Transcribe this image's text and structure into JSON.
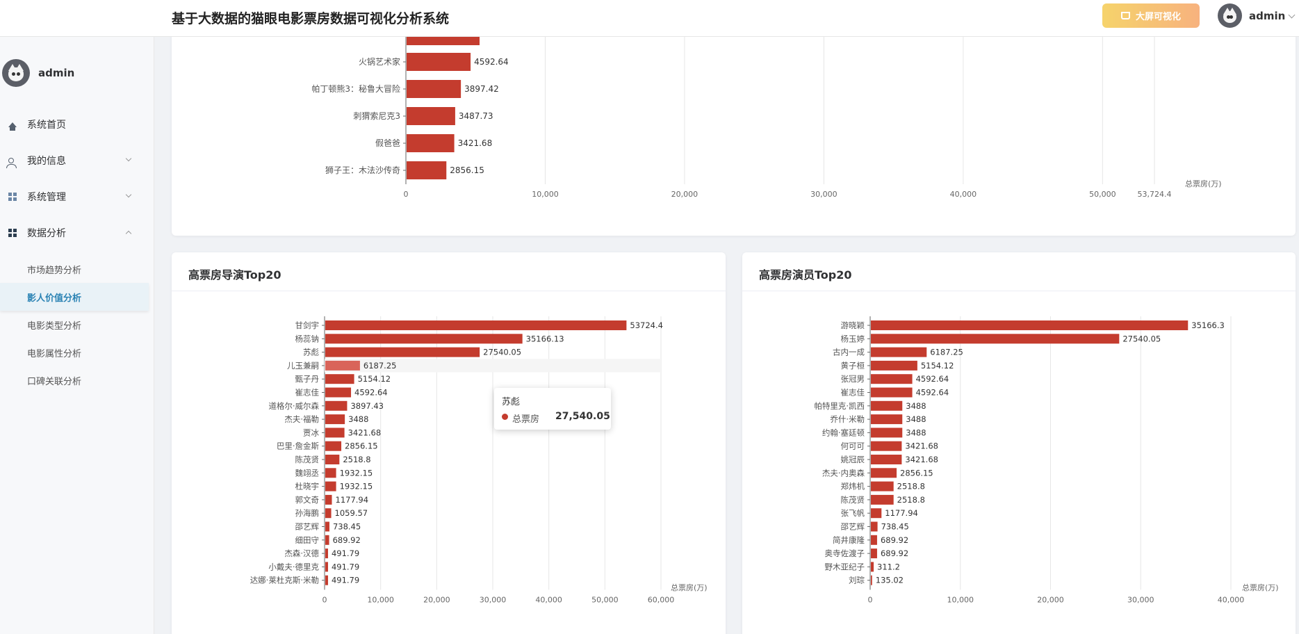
{
  "header": {
    "title": "基于大数据的猫眼电影票房数据可视化分析系统",
    "bigscreen_label": "大屏可视化",
    "username": "admin"
  },
  "sidebar": {
    "username": "admin",
    "menu": [
      {
        "label": "系统首页",
        "icon": "home-icon"
      },
      {
        "label": "我的信息",
        "icon": "user-icon"
      },
      {
        "label": "系统管理",
        "icon": "grid-icon"
      },
      {
        "label": "数据分析",
        "icon": "grid-icon"
      }
    ],
    "submenu": [
      {
        "label": "市场趋势分析"
      },
      {
        "label": "影人价值分析"
      },
      {
        "label": "电影类型分析"
      },
      {
        "label": "电影属性分析"
      },
      {
        "label": "口碑关联分析"
      }
    ]
  },
  "colors": {
    "bar": "#c43c2e",
    "bar_highlight": "#d9645a",
    "accent": "#2b83b4"
  },
  "tooltip": {
    "title": "苏彪",
    "series": "总票房",
    "value": "27,540.05"
  },
  "chart_data": [
    {
      "type": "bar",
      "orientation": "horizontal",
      "title": "",
      "axis_unit": "总票房(万)",
      "xlim": [
        0,
        53724.4
      ],
      "xticks": [
        "0",
        "10,000",
        "20,000",
        "30,000",
        "40,000",
        "50,000",
        "53,724.4"
      ],
      "categories": [
        "火锅艺术家",
        "帕丁顿熊3：秘鲁大冒险",
        "刺猬索尼克3",
        "假爸爸",
        "狮子王：木法沙传奇"
      ],
      "values": [
        4592.64,
        3897.42,
        3487.73,
        3421.68,
        2856.15
      ],
      "labels": [
        "4592.64",
        "3897.42",
        "3487.73",
        "3421.68",
        "2856.15"
      ]
    },
    {
      "type": "bar",
      "orientation": "horizontal",
      "title": "高票房导演Top20",
      "axis_unit": "总票房(万)",
      "xlim": [
        0,
        60000
      ],
      "xticks": [
        "0",
        "10,000",
        "20,000",
        "30,000",
        "40,000",
        "50,000",
        "60,000"
      ],
      "categories": [
        "甘剑宇",
        "杨蕊钠",
        "苏彪",
        "儿玉兼嗣",
        "甄子丹",
        "崔志佳",
        "道格尔·威尔森",
        "杰夫·福勒",
        "贾冰",
        "巴里·詹金斯",
        "陈茂贤",
        "魏翊丞",
        "杜晓宇",
        "郭文奇",
        "孙海鹏",
        "邵艺辉",
        "细田守",
        "杰森·汉德",
        "小戴夫·德里克",
        "达娜·莱杜克斯·米勒"
      ],
      "values": [
        53724.4,
        35166.13,
        27540.05,
        6187.25,
        5154.12,
        4592.64,
        3897.43,
        3488,
        3421.68,
        2856.15,
        2518.8,
        1932.15,
        1932.15,
        1177.94,
        1059.57,
        738.45,
        689.92,
        491.79,
        491.79,
        491.79
      ],
      "labels": [
        "53724.4",
        "35166.13",
        "27540.05",
        "6187.25",
        "5154.12",
        "4592.64",
        "3897.43",
        "3488",
        "3421.68",
        "2856.15",
        "2518.8",
        "1932.15",
        "1932.15",
        "1177.94",
        "1059.57",
        "738.45",
        "689.92",
        "491.79",
        "491.79",
        "491.79"
      ],
      "highlight_index": 3
    },
    {
      "type": "bar",
      "orientation": "horizontal",
      "title": "高票房演员Top20",
      "axis_unit": "总票房(万)",
      "xlim": [
        0,
        40000
      ],
      "xticks": [
        "0",
        "10,000",
        "20,000",
        "30,000",
        "40,000"
      ],
      "categories": [
        "游晓颖",
        "杨玉婷",
        "古内一成",
        "黄子桓",
        "张冠男",
        "崔志佳",
        "帕特里克·凯西",
        "乔什·米勒",
        "约翰·塞廷顿",
        "何可可",
        "姚冠辰",
        "杰夫·内奥森",
        "郑炜机",
        "陈茂贤",
        "张飞帆",
        "邵艺辉",
        "简井康隆",
        "奥寺佐渡子",
        "野木亚纪子",
        "刘琮"
      ],
      "values": [
        35166.3,
        27540.05,
        6187.25,
        5154.12,
        4592.64,
        4592.64,
        3488,
        3488,
        3488,
        3421.68,
        3421.68,
        2856.15,
        2518.8,
        2518.8,
        1177.94,
        738.45,
        689.92,
        689.92,
        311.2,
        135.02
      ],
      "labels": [
        "35166.3",
        "27540.05",
        "6187.25",
        "5154.12",
        "4592.64",
        "4592.64",
        "3488",
        "3488",
        "3488",
        "3421.68",
        "3421.68",
        "2856.15",
        "2518.8",
        "2518.8",
        "1177.94",
        "738.45",
        "689.92",
        "689.92",
        "311.2",
        "135.02"
      ]
    }
  ]
}
